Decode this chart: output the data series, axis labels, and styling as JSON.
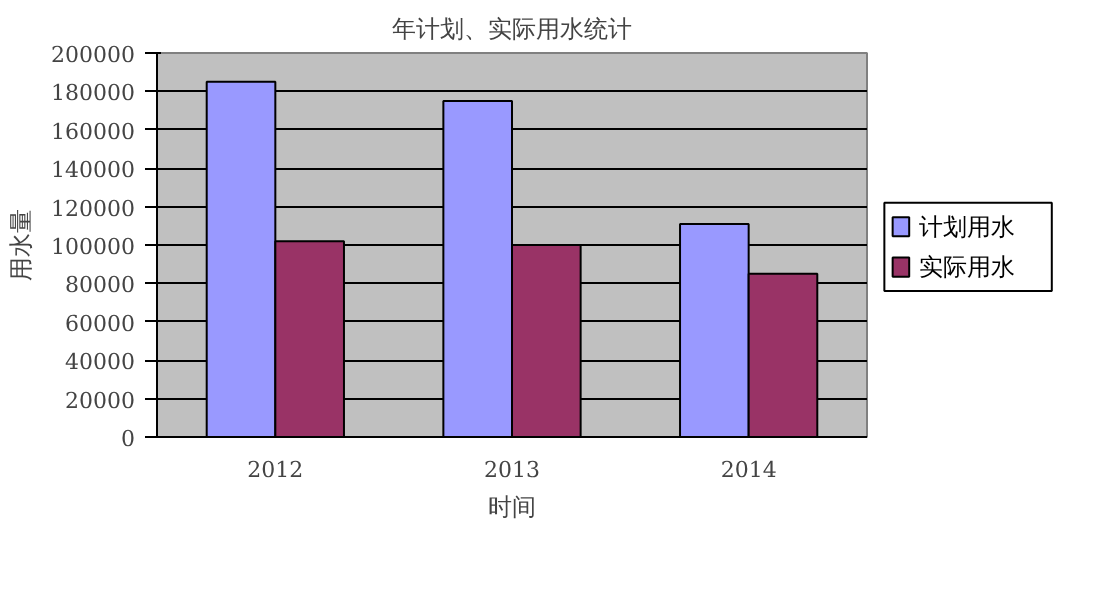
{
  "chart_data": {
    "type": "bar",
    "title": "年计划、实际用水统计",
    "xlabel": "时间",
    "ylabel": "用水量",
    "categories": [
      "2012",
      "2013",
      "2014"
    ],
    "series": [
      {
        "name": "计划用水",
        "color": "#9999ff",
        "values": [
          185000,
          175000,
          111000
        ]
      },
      {
        "name": "实际用水",
        "color": "#993366",
        "values": [
          102000,
          100000,
          85000
        ]
      }
    ],
    "ylim": [
      0,
      200000
    ],
    "yticks": [
      0,
      20000,
      40000,
      60000,
      80000,
      100000,
      120000,
      140000,
      160000,
      180000,
      200000
    ],
    "grid": "y",
    "legend": "right"
  }
}
